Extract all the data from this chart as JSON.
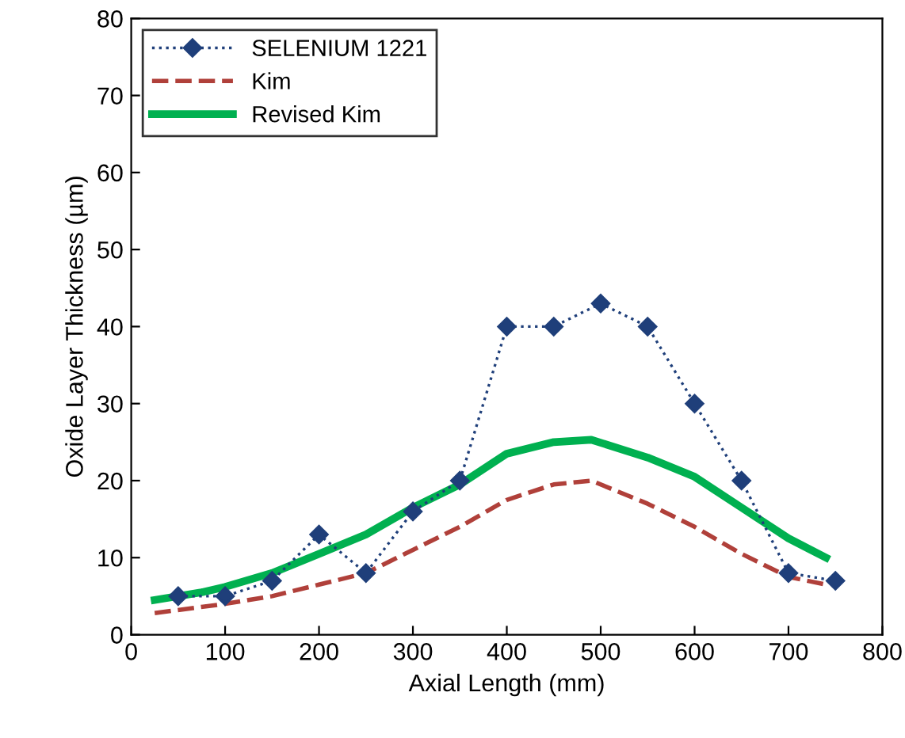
{
  "chart_data": {
    "type": "line",
    "xlabel": "Axial Length (mm)",
    "ylabel": "Oxide Layer Thickness (µm)",
    "xlim": [
      0,
      800
    ],
    "xticks": [
      0,
      100,
      200,
      300,
      400,
      500,
      600,
      700,
      800
    ],
    "ylim": [
      0,
      80
    ],
    "yticks": [
      0,
      10,
      20,
      30,
      40,
      50,
      60,
      70,
      80
    ],
    "grid": false,
    "legend": "top left",
    "series": [
      {
        "name": "SELENIUM 1221",
        "color": "#1f3f7a",
        "marker": "diamond",
        "line_style": "dotted",
        "x": [
          50,
          100,
          150,
          200,
          250,
          300,
          350,
          400,
          450,
          500,
          550,
          600,
          650,
          700,
          750
        ],
        "values": [
          5,
          5,
          7,
          13,
          8,
          16,
          20,
          40,
          40,
          43,
          40,
          30,
          20,
          8,
          7
        ]
      },
      {
        "name": "Kim",
        "color": "#b0403a",
        "marker": "none",
        "line_style": "dashed",
        "x": [
          25,
          100,
          150,
          200,
          250,
          300,
          350,
          400,
          450,
          490,
          550,
          600,
          650,
          700,
          740
        ],
        "values": [
          2.8,
          4,
          5,
          6.5,
          8,
          11,
          14,
          17.5,
          19.5,
          20,
          17,
          14,
          10.5,
          7.5,
          6.5
        ]
      },
      {
        "name": "Revised Kim",
        "color": "#00b050",
        "marker": "none",
        "line_style": "solid",
        "x": [
          25,
          75,
          100,
          150,
          200,
          250,
          300,
          350,
          400,
          450,
          490,
          550,
          600,
          650,
          700,
          740
        ],
        "values": [
          4.5,
          5.5,
          6.2,
          8,
          10.5,
          13,
          16.5,
          19.5,
          23.5,
          25,
          25.3,
          23,
          20.5,
          16.5,
          12.5,
          10
        ]
      }
    ]
  }
}
